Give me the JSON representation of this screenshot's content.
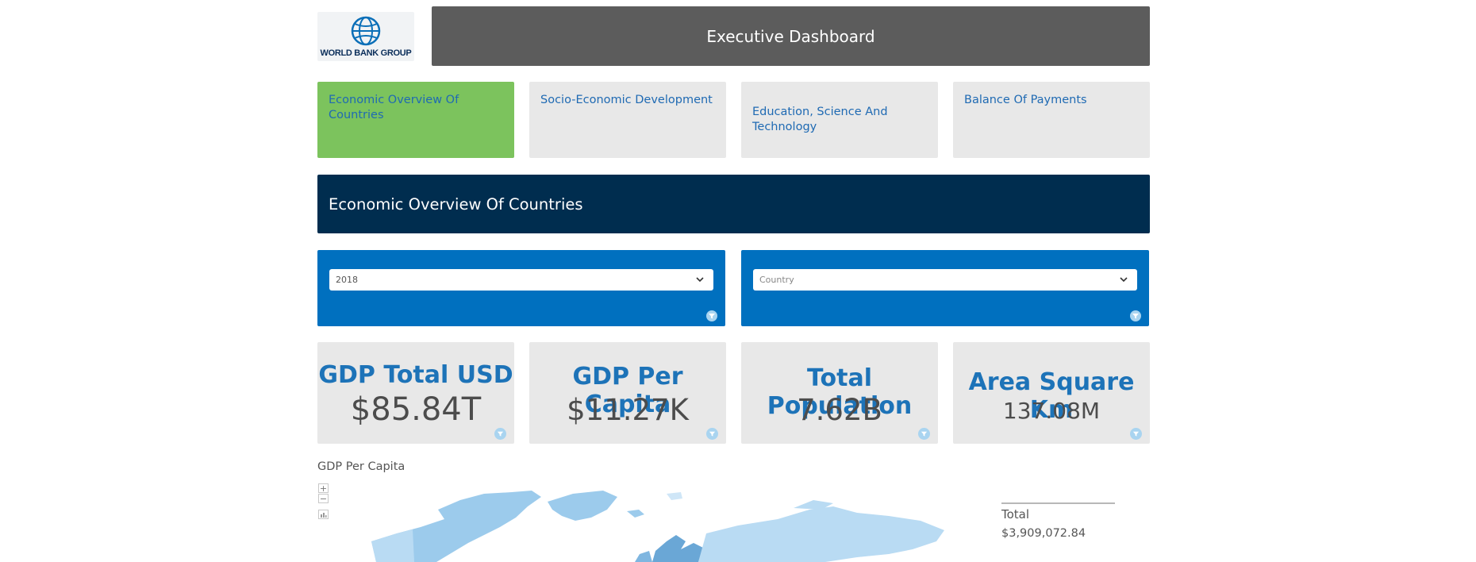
{
  "brand": {
    "logo_text": "WORLD BANK GROUP"
  },
  "header": {
    "title": "Executive Dashboard"
  },
  "tabs": [
    {
      "label": "Economic Overview Of Countries",
      "active": true
    },
    {
      "label": "Socio-Economic Development",
      "active": false
    },
    {
      "label": "Education, Science And Technology",
      "active": false
    },
    {
      "label": "Balance Of Payments",
      "active": false
    }
  ],
  "section": {
    "title": "Economic Overview Of Countries"
  },
  "filters": {
    "year": {
      "value": "2018"
    },
    "country": {
      "placeholder": "Country"
    }
  },
  "kpis": [
    {
      "title": "GDP Total USD",
      "value": "$85.84T"
    },
    {
      "title": "GDP Per Capita",
      "value": "$11.27K"
    },
    {
      "title": "Total Population",
      "value": "7.62B"
    },
    {
      "title": "Area Square Km",
      "value": "137.08M"
    }
  ],
  "map": {
    "title": "GDP Per Capita",
    "zoom_in": "+",
    "zoom_out": "−",
    "legend_label": "Total",
    "legend_value": "$3,909,072.84"
  },
  "colors": {
    "header_bg": "#5c5c5c",
    "active_tab": "#7cc35d",
    "tab_bg": "#e8e8e8",
    "section_bg": "#002d4f",
    "filter_bg": "#0070bf",
    "kpi_title": "#1d73b8",
    "map_fill": "#9ccbec"
  }
}
